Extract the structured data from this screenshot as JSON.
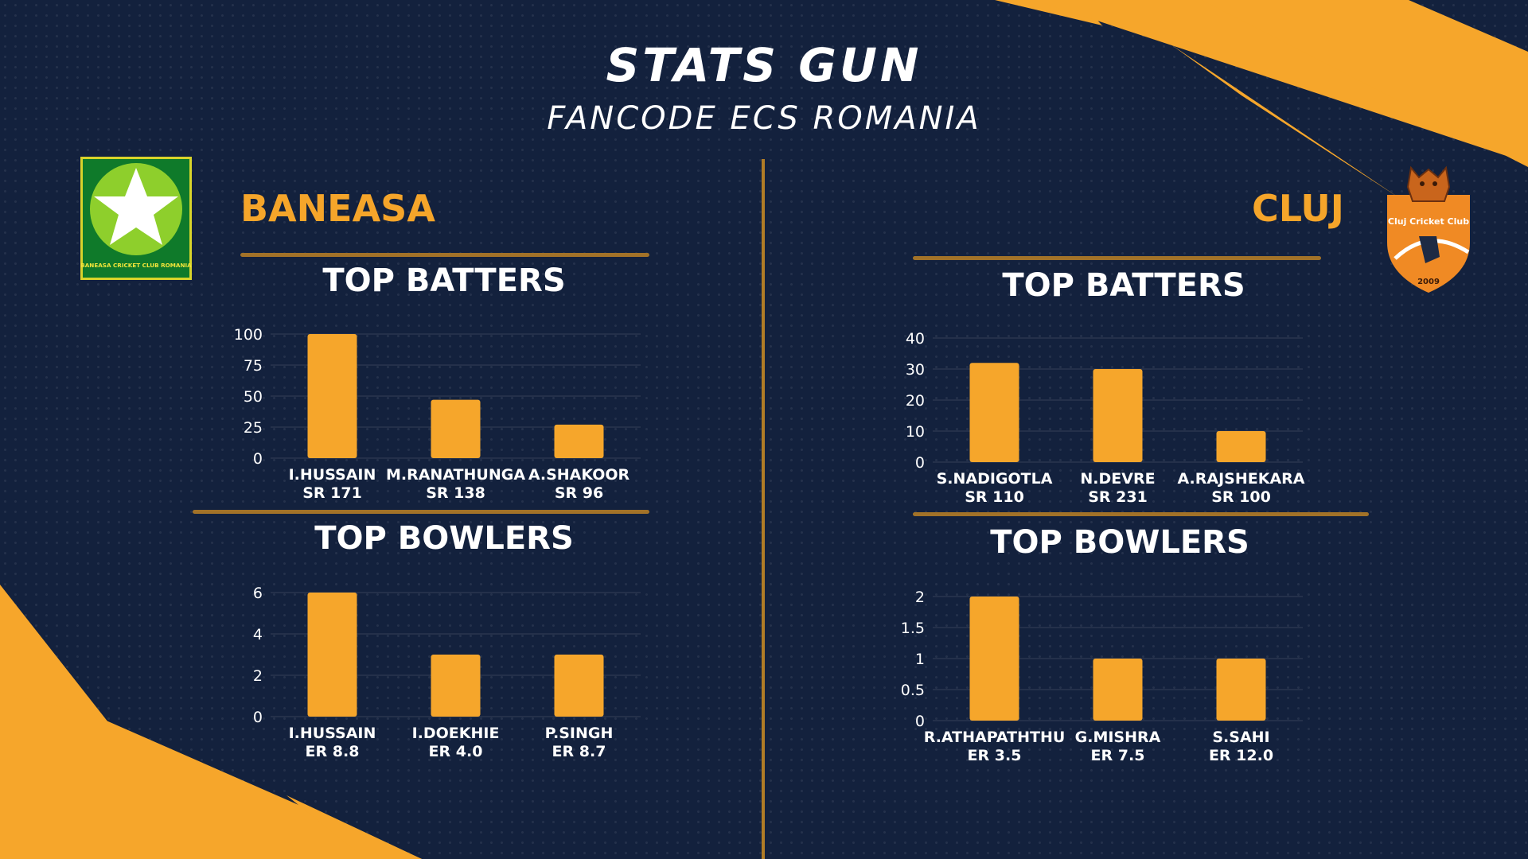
{
  "header": {
    "title": "STATS GUN",
    "subtitle": "FANCODE ECS ROMANIA"
  },
  "colors": {
    "background": "#13213d",
    "accent": "#f5a52a",
    "bar": "#f6a62b",
    "logo_green": "#0f7a2a",
    "logo_lime": "#8ecf2c"
  },
  "teams": {
    "left": {
      "name": "BANEASA",
      "logo": {
        "icon": "baneasa-star-logo",
        "text": "BANEASA CRICKET CLUB ROMANIA"
      },
      "batters_title": "TOP BATTERS",
      "bowlers_title": "TOP BOWLERS"
    },
    "right": {
      "name": "CLUJ",
      "logo": {
        "icon": "cluj-bear-logo",
        "text": "Cluj Cricket Club",
        "year": "2009"
      },
      "batters_title": "TOP BATTERS",
      "bowlers_title": "TOP BOWLERS"
    }
  },
  "chart_data": [
    {
      "id": "baneasa-batters",
      "type": "bar",
      "title": "TOP BATTERS",
      "categories": [
        "I.HUSSAIN",
        "M.RANATHUNGA",
        "A.SHAKOOR"
      ],
      "sublabels": [
        "SR 171",
        "SR 138",
        "SR 96"
      ],
      "values": [
        100,
        47,
        27
      ],
      "yticks": [
        0,
        25,
        50,
        75,
        100
      ],
      "ylim": [
        0,
        100
      ],
      "grid": true
    },
    {
      "id": "baneasa-bowlers",
      "type": "bar",
      "title": "TOP BOWLERS",
      "categories": [
        "I.HUSSAIN",
        "I.DOEKHIE",
        "P.SINGH"
      ],
      "sublabels": [
        "ER 8.8",
        "ER 4.0",
        "ER 8.7"
      ],
      "values": [
        6,
        3,
        3
      ],
      "yticks": [
        0,
        2,
        4,
        6
      ],
      "ylim": [
        0,
        6
      ],
      "grid": true
    },
    {
      "id": "cluj-batters",
      "type": "bar",
      "title": "TOP BATTERS",
      "categories": [
        "S.NADIGOTLA",
        "N.DEVRE",
        "A.RAJSHEKARA"
      ],
      "sublabels": [
        "SR 110",
        "SR 231",
        "SR 100"
      ],
      "values": [
        32,
        30,
        10
      ],
      "yticks": [
        0,
        10,
        20,
        30,
        40
      ],
      "ylim": [
        0,
        40
      ],
      "grid": true
    },
    {
      "id": "cluj-bowlers",
      "type": "bar",
      "title": "TOP BOWLERS",
      "categories": [
        "R.ATHAPATHTHU",
        "G.MISHRA",
        "S.SAHI"
      ],
      "sublabels": [
        "ER 3.5",
        "ER 7.5",
        "ER 12.0"
      ],
      "values": [
        2,
        1,
        1
      ],
      "yticks": [
        0,
        0.5,
        1,
        1.5,
        2
      ],
      "ylim": [
        0,
        2
      ],
      "grid": true
    }
  ]
}
